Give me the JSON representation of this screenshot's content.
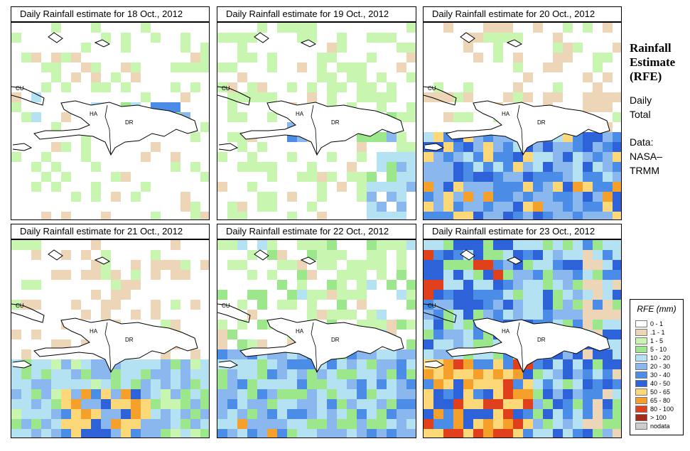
{
  "panels": [
    {
      "title": "Daily Rainfall estimate for  18 Oct., 2012"
    },
    {
      "title": "Daily Rainfall estimate for  19 Oct., 2012"
    },
    {
      "title": "Daily Rainfall estimate for  20 Oct., 2012"
    },
    {
      "title": "Daily Rainfall estimate for  21 Oct., 2012"
    },
    {
      "title": "Daily Rainfall estimate for  22 Oct., 2012"
    },
    {
      "title": "Daily Rainfall estimate for  23 Oct., 2012"
    }
  ],
  "map_labels": {
    "cuba": "CU",
    "haiti": "HA",
    "dominican_republic": "DR"
  },
  "side": {
    "title_line1": "Rainfall",
    "title_line2": "Estimate",
    "title_line3": "(RFE)",
    "daily": "Daily",
    "total": "Total",
    "data": "Data:",
    "nasa": "NASA–",
    "trmm": "TRMM"
  },
  "legend": {
    "title": "RFE (mm)",
    "items": [
      {
        "label": "0 - 1",
        "color": "#ffffff"
      },
      {
        "label": ".1 - 1",
        "color": "#ecd6b7"
      },
      {
        "label": "1 - 5",
        "color": "#c8f5b0"
      },
      {
        "label": "5 - 10",
        "color": "#9ce68c"
      },
      {
        "label": "10 - 20",
        "color": "#b4e2f2"
      },
      {
        "label": "20 - 30",
        "color": "#8ab8ee"
      },
      {
        "label": "30 - 40",
        "color": "#4a8ce6"
      },
      {
        "label": "40 - 50",
        "color": "#2d62d8"
      },
      {
        "label": "50 - 65",
        "color": "#fcd878"
      },
      {
        "label": "65 - 80",
        "color": "#f6a02c"
      },
      {
        "label": "80 - 100",
        "color": "#e0401c"
      },
      {
        "label": "> 100",
        "color": "#a8281c"
      },
      {
        "label": "nodata",
        "color": "#cccccc"
      }
    ]
  }
}
